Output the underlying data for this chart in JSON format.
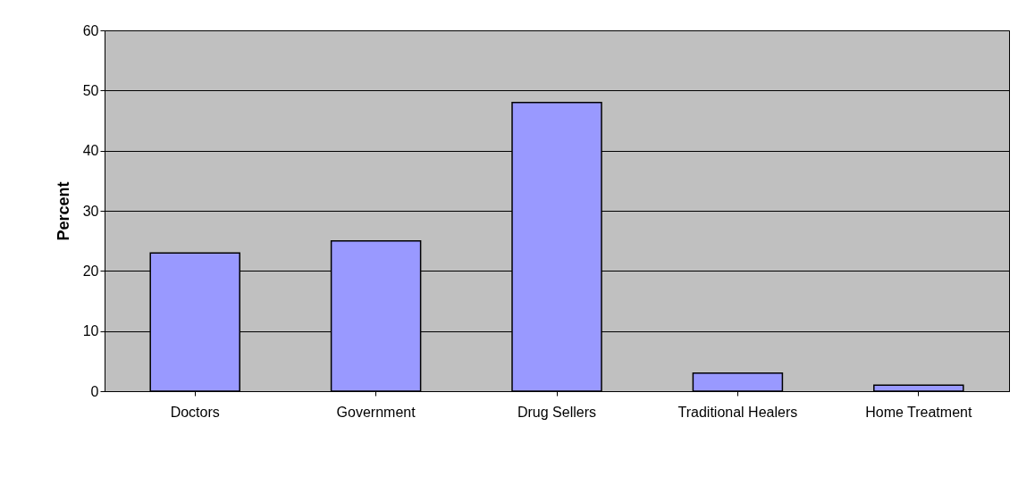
{
  "chart_data": {
    "type": "bar",
    "ylabel": "Percent",
    "categories": [
      "Doctors",
      "Government",
      "Drug Sellers",
      "Traditional Healers",
      "Home Treatment"
    ],
    "values": [
      23,
      25,
      48,
      3,
      1
    ],
    "color": "#9999ff",
    "ylim": [
      0,
      60
    ],
    "yticks": [
      0,
      10,
      20,
      30,
      40,
      50,
      60
    ],
    "grid": "y"
  }
}
